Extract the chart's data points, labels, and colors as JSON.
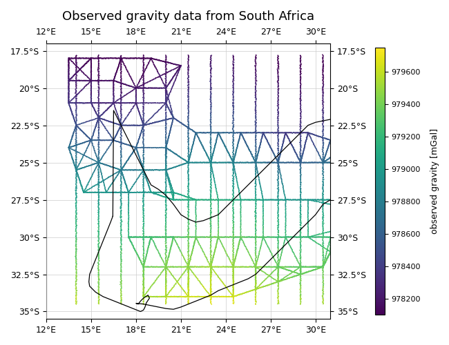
{
  "title": "Observed gravity data from South Africa",
  "lon_min": 12,
  "lon_max": 31,
  "lat_min": -35.5,
  "lat_max": -17.0,
  "xlim": [
    12,
    31
  ],
  "ylim": [
    -35.5,
    -17.0
  ],
  "xticks": [
    12,
    15,
    18,
    21,
    24,
    27,
    30
  ],
  "yticks": [
    -17.5,
    -20.0,
    -22.5,
    -25.0,
    -27.5,
    -30.0,
    -32.5,
    -35.0
  ],
  "cmap": "viridis",
  "vmin": 978100,
  "vmax": 979750,
  "colorbar_label": "observed gravity [mGal]",
  "colorbar_ticks": [
    978200,
    978400,
    978600,
    978800,
    979000,
    979200,
    979400,
    979600
  ],
  "point_size": 1.5,
  "background_color": "white",
  "grid_color": "#cccccc",
  "seed": 123,
  "title_fontsize": 13,
  "tick_fontsize": 9,
  "cbar_tick_fontsize": 8,
  "cbar_label_fontsize": 9
}
